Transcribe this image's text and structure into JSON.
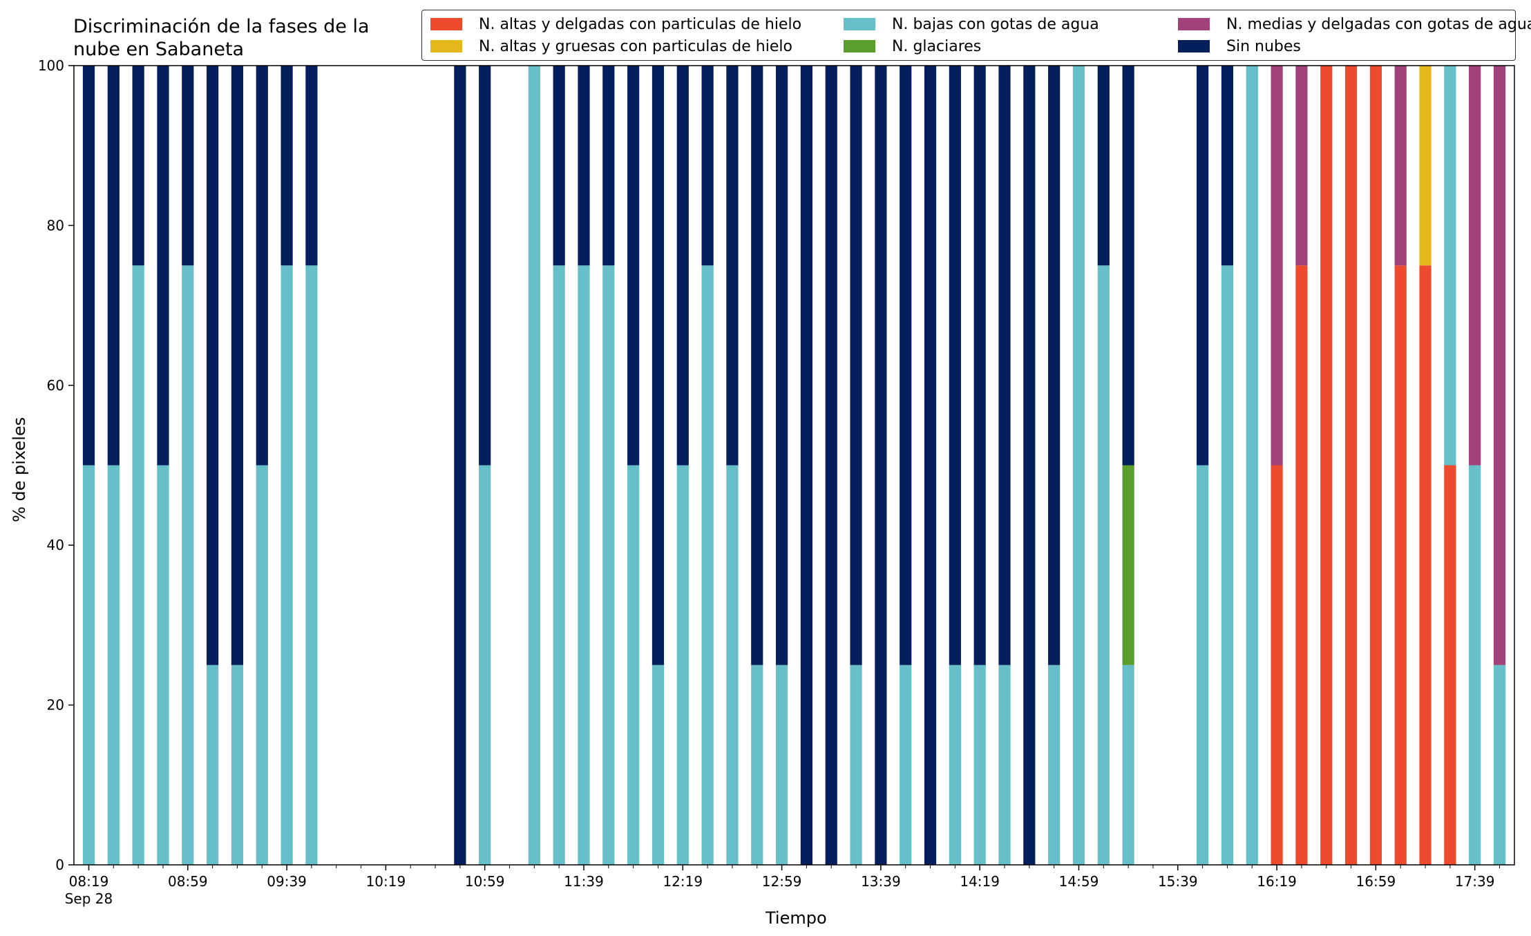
{
  "chart_data": {
    "type": "bar",
    "stacked": true,
    "title": [
      "Discriminación de la fases de la",
      "nube en Sabaneta"
    ],
    "xlabel": "Tiempo",
    "ylabel": "% de pixeles",
    "ylim": [
      0,
      100
    ],
    "yticks": [
      0,
      20,
      40,
      60,
      80,
      100
    ],
    "xticks": [
      "08:19",
      "08:59",
      "09:39",
      "10:19",
      "10:59",
      "11:39",
      "12:19",
      "12:59",
      "13:39",
      "14:19",
      "14:59",
      "15:39",
      "16:19",
      "16:59",
      "17:39"
    ],
    "xtick_sublabel": "Sep 28",
    "time_range": [
      "08:19",
      "17:49"
    ],
    "time_step_minutes": 10,
    "legend_position": "top-right",
    "series": [
      {
        "name": "N. altas y delgadas con particulas de hielo",
        "color": "#ee4a2d"
      },
      {
        "name": "N. altas y gruesas con particulas de hielo",
        "color": "#e4b71a"
      },
      {
        "name": "N. bajas con gotas de agua",
        "color": "#66bfc9"
      },
      {
        "name": "N. glaciares",
        "color": "#5a9e2d"
      },
      {
        "name": "N. medias y delgadas con gotas de agua",
        "color": "#a2427a"
      },
      {
        "name": "Sin nubes",
        "color": "#041f5c"
      }
    ],
    "legend_order": [
      0,
      2,
      4,
      1,
      3,
      5
    ],
    "stack_order": [
      0,
      1,
      2,
      3,
      4,
      5
    ],
    "bars": [
      {
        "time": "08:19",
        "values": [
          0,
          0,
          50,
          0,
          0,
          50
        ]
      },
      {
        "time": "08:29",
        "values": [
          0,
          0,
          50,
          0,
          0,
          50
        ]
      },
      {
        "time": "08:39",
        "values": [
          0,
          0,
          75,
          0,
          0,
          25
        ]
      },
      {
        "time": "08:49",
        "values": [
          0,
          0,
          50,
          0,
          0,
          50
        ]
      },
      {
        "time": "08:59",
        "values": [
          0,
          0,
          75,
          0,
          0,
          25
        ]
      },
      {
        "time": "09:09",
        "values": [
          0,
          0,
          25,
          0,
          0,
          75
        ]
      },
      {
        "time": "09:19",
        "values": [
          0,
          0,
          25,
          0,
          0,
          75
        ]
      },
      {
        "time": "09:29",
        "values": [
          0,
          0,
          50,
          0,
          0,
          50
        ]
      },
      {
        "time": "09:39",
        "values": [
          0,
          0,
          75,
          0,
          0,
          25
        ]
      },
      {
        "time": "09:49",
        "values": [
          0,
          0,
          75,
          0,
          0,
          25
        ]
      },
      {
        "time": "10:49",
        "values": [
          0,
          0,
          0,
          0,
          0,
          100
        ]
      },
      {
        "time": "10:59",
        "values": [
          0,
          0,
          50,
          0,
          0,
          50
        ]
      },
      {
        "time": "11:19",
        "values": [
          0,
          0,
          100,
          0,
          0,
          0
        ]
      },
      {
        "time": "11:29",
        "values": [
          0,
          0,
          75,
          0,
          0,
          25
        ]
      },
      {
        "time": "11:39",
        "values": [
          0,
          0,
          75,
          0,
          0,
          25
        ]
      },
      {
        "time": "11:49",
        "values": [
          0,
          0,
          75,
          0,
          0,
          25
        ]
      },
      {
        "time": "11:59",
        "values": [
          0,
          0,
          50,
          0,
          0,
          50
        ]
      },
      {
        "time": "12:09",
        "values": [
          0,
          0,
          25,
          0,
          0,
          75
        ]
      },
      {
        "time": "12:19",
        "values": [
          0,
          0,
          50,
          0,
          0,
          50
        ]
      },
      {
        "time": "12:29",
        "values": [
          0,
          0,
          75,
          0,
          0,
          25
        ]
      },
      {
        "time": "12:39",
        "values": [
          0,
          0,
          50,
          0,
          0,
          50
        ]
      },
      {
        "time": "12:49",
        "values": [
          0,
          0,
          25,
          0,
          0,
          75
        ]
      },
      {
        "time": "12:59",
        "values": [
          0,
          0,
          25,
          0,
          0,
          75
        ]
      },
      {
        "time": "13:09",
        "values": [
          0,
          0,
          0,
          0,
          0,
          100
        ]
      },
      {
        "time": "13:19",
        "values": [
          0,
          0,
          0,
          0,
          0,
          100
        ]
      },
      {
        "time": "13:29",
        "values": [
          0,
          0,
          25,
          0,
          0,
          75
        ]
      },
      {
        "time": "13:39",
        "values": [
          0,
          0,
          0,
          0,
          0,
          100
        ]
      },
      {
        "time": "13:49",
        "values": [
          0,
          0,
          25,
          0,
          0,
          75
        ]
      },
      {
        "time": "13:59",
        "values": [
          0,
          0,
          0,
          0,
          0,
          100
        ]
      },
      {
        "time": "14:09",
        "values": [
          0,
          0,
          25,
          0,
          0,
          75
        ]
      },
      {
        "time": "14:19",
        "values": [
          0,
          0,
          25,
          0,
          0,
          75
        ]
      },
      {
        "time": "14:29",
        "values": [
          0,
          0,
          25,
          0,
          0,
          75
        ]
      },
      {
        "time": "14:39",
        "values": [
          0,
          0,
          0,
          0,
          0,
          100
        ]
      },
      {
        "time": "14:49",
        "values": [
          0,
          0,
          25,
          0,
          0,
          75
        ]
      },
      {
        "time": "14:59",
        "values": [
          0,
          0,
          100,
          0,
          0,
          0
        ]
      },
      {
        "time": "15:09",
        "values": [
          0,
          0,
          75,
          0,
          0,
          25
        ]
      },
      {
        "time": "15:19",
        "values": [
          0,
          0,
          25,
          25,
          0,
          50
        ]
      },
      {
        "time": "15:49",
        "values": [
          0,
          0,
          50,
          0,
          0,
          50
        ]
      },
      {
        "time": "15:59",
        "values": [
          0,
          0,
          75,
          0,
          0,
          25
        ]
      },
      {
        "time": "16:09",
        "values": [
          0,
          0,
          100,
          0,
          0,
          0
        ]
      },
      {
        "time": "16:19",
        "values": [
          50,
          0,
          0,
          0,
          50,
          0
        ]
      },
      {
        "time": "16:29",
        "values": [
          75,
          0,
          0,
          0,
          25,
          0
        ]
      },
      {
        "time": "16:39",
        "values": [
          100,
          0,
          0,
          0,
          0,
          0
        ]
      },
      {
        "time": "16:49",
        "values": [
          100,
          0,
          0,
          0,
          0,
          0
        ]
      },
      {
        "time": "16:59",
        "values": [
          100,
          0,
          0,
          0,
          0,
          0
        ]
      },
      {
        "time": "17:09",
        "values": [
          75,
          0,
          0,
          0,
          25,
          0
        ]
      },
      {
        "time": "17:19",
        "values": [
          75,
          25,
          0,
          0,
          0,
          0
        ]
      },
      {
        "time": "17:29",
        "values": [
          50,
          0,
          50,
          0,
          0,
          0
        ]
      },
      {
        "time": "17:39",
        "values": [
          0,
          0,
          50,
          0,
          50,
          0
        ]
      },
      {
        "time": "17:49",
        "values": [
          0,
          0,
          25,
          0,
          75,
          0
        ]
      }
    ]
  }
}
